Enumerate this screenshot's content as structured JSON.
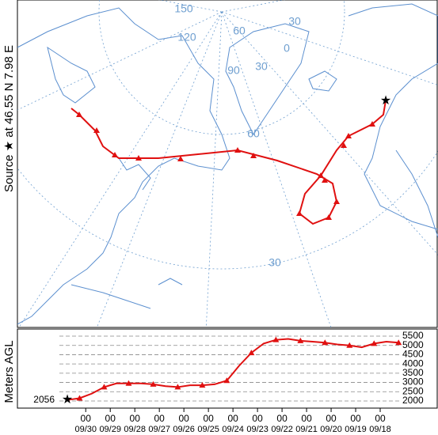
{
  "source_label": "Source ★ at   46.55 N   7.98 E",
  "map": {
    "graticule_labels": [
      "150",
      "120",
      "90",
      "60",
      "30",
      "0",
      "30",
      "60",
      "30"
    ]
  },
  "chart_data": {
    "type": "line",
    "ylabel": "Meters AGL",
    "color": "#e01010",
    "x": [
      0,
      12,
      24,
      36,
      48,
      60,
      72,
      84,
      96,
      108,
      120,
      132,
      144,
      156,
      168,
      180,
      192,
      204,
      216,
      228,
      240,
      252,
      264,
      276,
      288,
      300,
      312,
      324
    ],
    "values": [
      2056,
      2150,
      2400,
      2750,
      2950,
      2950,
      2950,
      2900,
      2800,
      2750,
      2850,
      2850,
      2900,
      3100,
      3900,
      4600,
      5100,
      5300,
      5350,
      5250,
      5200,
      5150,
      5050,
      5000,
      4900,
      5100,
      5200,
      5150
    ],
    "xlim": [
      0,
      330
    ],
    "ylim": [
      2000,
      5500
    ],
    "yticks": [
      2000,
      2500,
      3000,
      3500,
      4000,
      4500,
      5000,
      5500
    ],
    "xticks": [
      {
        "value": 18,
        "label": "00"
      },
      {
        "value": 42,
        "label": "00"
      },
      {
        "value": 66,
        "label": "00"
      },
      {
        "value": 90,
        "label": "00"
      },
      {
        "value": 114,
        "label": "00"
      },
      {
        "value": 138,
        "label": "00"
      },
      {
        "value": 162,
        "label": "00"
      },
      {
        "value": 186,
        "label": "00"
      },
      {
        "value": 210,
        "label": "00"
      },
      {
        "value": 234,
        "label": "00"
      },
      {
        "value": 258,
        "label": "00"
      },
      {
        "value": 282,
        "label": "00"
      },
      {
        "value": 306,
        "label": "00"
      }
    ],
    "date_labels": [
      "09/30",
      "09/29",
      "09/28",
      "09/27",
      "09/26",
      "09/25",
      "09/24",
      "09/23",
      "09/22",
      "09/21",
      "09/20",
      "09/19",
      "09/18"
    ]
  }
}
